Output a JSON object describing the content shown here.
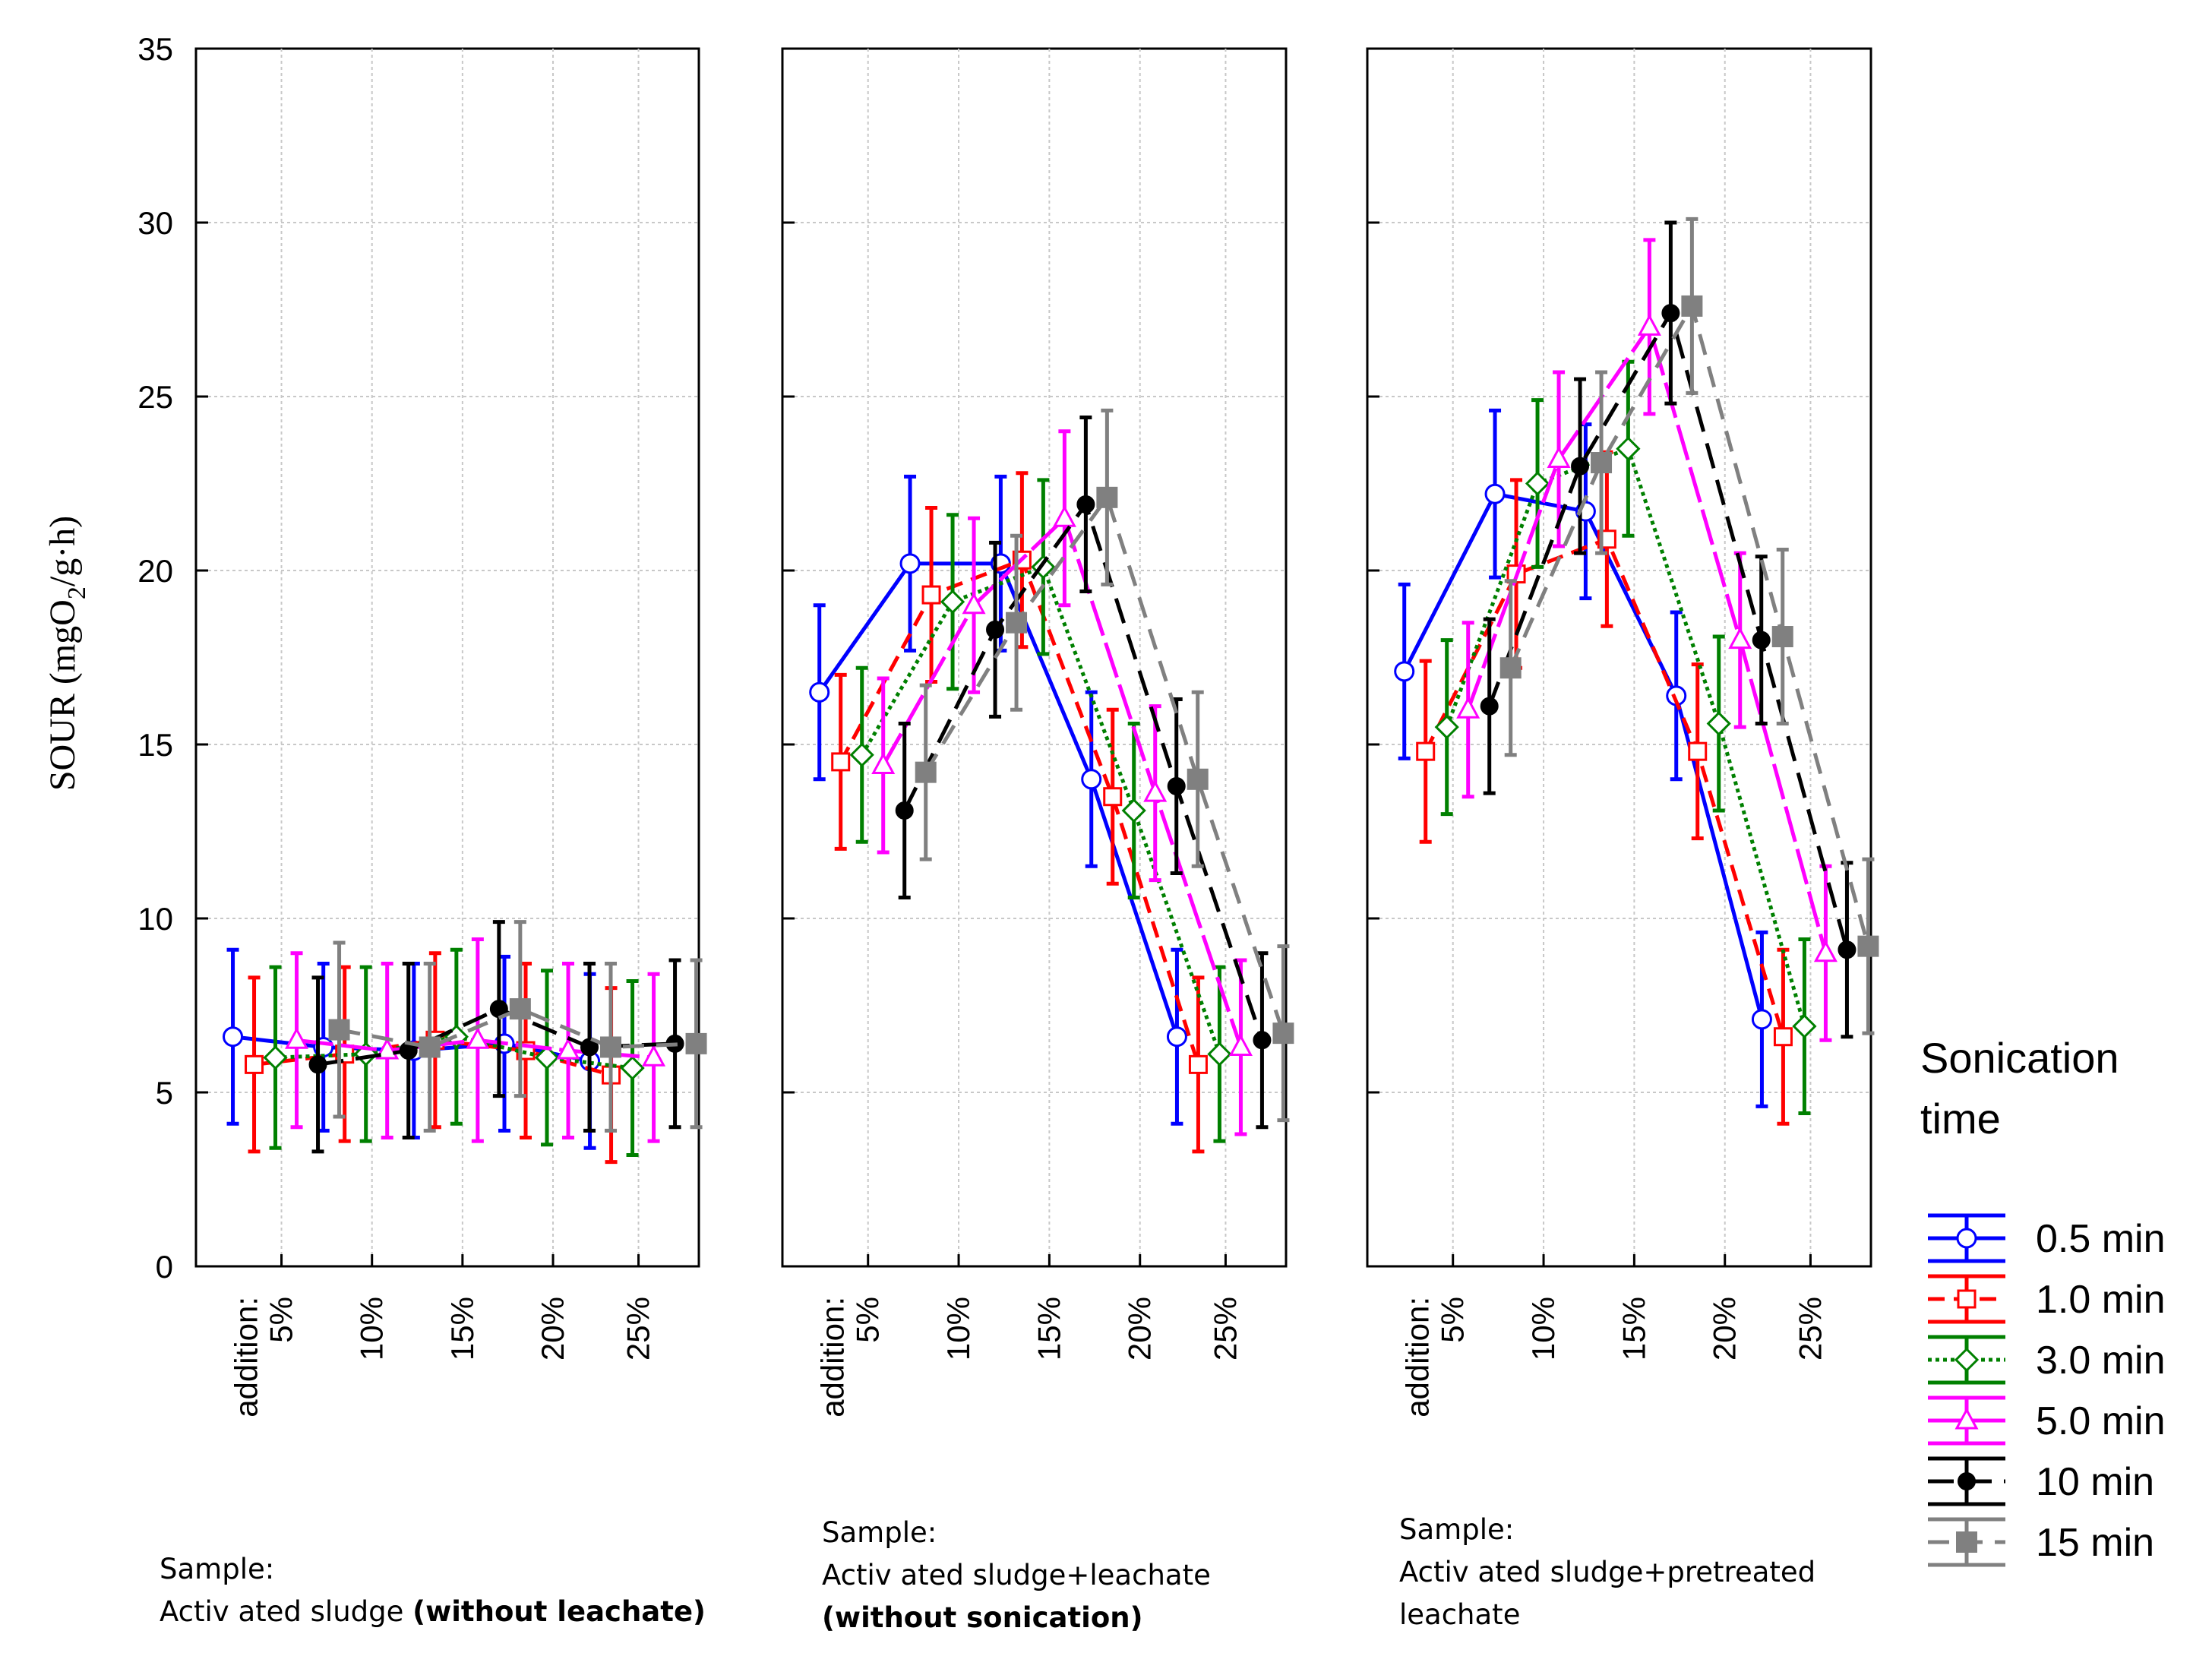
{
  "chart_data": {
    "type": "line",
    "y_axis": {
      "label_main": "SOUR (mgO",
      "label_sub": "2",
      "label_tail": "/g·h)",
      "ylim": [
        0,
        35
      ],
      "ticks": [
        "0",
        "5",
        "10",
        "15",
        "20",
        "25",
        "30",
        "35"
      ]
    },
    "x_axis": {
      "categories": [
        "5%",
        "10%",
        "15%",
        "20%",
        "25%"
      ],
      "prefix": "addition:"
    },
    "legend": {
      "title_line1": "Sonication",
      "title_line2": "time"
    },
    "series": [
      {
        "name": "0.5 min",
        "color": "#0000ff",
        "dash": "",
        "marker": "circle-open"
      },
      {
        "name": "1.0 min",
        "color": "#ff0000",
        "dash": "22,12",
        "marker": "square-open"
      },
      {
        "name": "3.0 min",
        "color": "#008000",
        "dash": "5,5",
        "marker": "diamond-open"
      },
      {
        "name": "5.0 min",
        "color": "#ff00ff",
        "dash": "48,10",
        "marker": "triangle-open"
      },
      {
        "name": "10 min",
        "color": "#000000",
        "dash": "34,16",
        "marker": "circle-filled"
      },
      {
        "name": "15 min",
        "color": "#808080",
        "dash": "28,16",
        "marker": "square-filled"
      }
    ],
    "panels": [
      {
        "caption_line1": "Sample:",
        "caption_line2": "Activ ated sludge ",
        "caption_line2_bold": "(without leachate)",
        "caption_line3": "",
        "caption_line3_bold": "",
        "values": [
          [
            6.6,
            6.3,
            6.2,
            6.4,
            5.9
          ],
          [
            5.8,
            6.1,
            6.5,
            6.2,
            5.5
          ],
          [
            6.0,
            6.1,
            6.6,
            6.0,
            5.7
          ],
          [
            6.5,
            6.2,
            6.5,
            6.2,
            6.0
          ],
          [
            5.8,
            6.2,
            7.4,
            6.3,
            6.4
          ],
          [
            6.8,
            6.3,
            7.4,
            6.3,
            6.4
          ]
        ],
        "errors": [
          [
            2.5,
            2.4,
            2.5,
            2.5,
            2.5
          ],
          [
            2.5,
            2.5,
            2.5,
            2.5,
            2.5
          ],
          [
            2.6,
            2.5,
            2.5,
            2.5,
            2.5
          ],
          [
            2.5,
            2.5,
            2.9,
            2.5,
            2.4
          ],
          [
            2.5,
            2.5,
            2.5,
            2.4,
            2.4
          ],
          [
            2.5,
            2.4,
            2.5,
            2.4,
            2.4
          ]
        ]
      },
      {
        "caption_line1": "Sample:",
        "caption_line2": "Activ ated sludge+leachate",
        "caption_line2_bold": "",
        "caption_line3": "",
        "caption_line3_bold": "(without sonication)",
        "values": [
          [
            16.5,
            20.2,
            20.2,
            14.0,
            6.6
          ],
          [
            14.5,
            19.3,
            20.3,
            13.5,
            5.8
          ],
          [
            14.7,
            19.1,
            20.1,
            13.1,
            6.1
          ],
          [
            14.4,
            19.0,
            21.5,
            13.6,
            6.3
          ],
          [
            13.1,
            18.3,
            21.9,
            13.8,
            6.5
          ],
          [
            14.2,
            18.5,
            22.1,
            14.0,
            6.7
          ]
        ],
        "errors": [
          [
            2.5,
            2.5,
            2.5,
            2.5,
            2.5
          ],
          [
            2.5,
            2.5,
            2.5,
            2.5,
            2.5
          ],
          [
            2.5,
            2.5,
            2.5,
            2.5,
            2.5
          ],
          [
            2.5,
            2.5,
            2.5,
            2.5,
            2.5
          ],
          [
            2.5,
            2.5,
            2.5,
            2.5,
            2.5
          ],
          [
            2.5,
            2.5,
            2.5,
            2.5,
            2.5
          ]
        ]
      },
      {
        "caption_line1": "Sample:",
        "caption_line2": "Activ ated sludge+pretreated",
        "caption_line2_bold": "",
        "caption_line3": "leachate",
        "caption_line3_bold": "",
        "values": [
          [
            17.1,
            22.2,
            21.7,
            16.4,
            7.1
          ],
          [
            14.8,
            19.9,
            20.9,
            14.8,
            6.6
          ],
          [
            15.5,
            22.5,
            23.5,
            15.6,
            6.9
          ],
          [
            16.0,
            23.2,
            27.0,
            18.0,
            9.0
          ],
          [
            16.1,
            23.0,
            27.4,
            18.0,
            9.1
          ],
          [
            17.2,
            23.1,
            27.6,
            18.1,
            9.2
          ]
        ],
        "errors": [
          [
            2.5,
            2.4,
            2.5,
            2.4,
            2.5
          ],
          [
            2.6,
            2.7,
            2.5,
            2.5,
            2.5
          ],
          [
            2.5,
            2.4,
            2.5,
            2.5,
            2.5
          ],
          [
            2.5,
            2.5,
            2.5,
            2.5,
            2.5
          ],
          [
            2.5,
            2.5,
            2.6,
            2.4,
            2.5
          ],
          [
            2.5,
            2.6,
            2.5,
            2.5,
            2.5
          ]
        ]
      }
    ]
  }
}
